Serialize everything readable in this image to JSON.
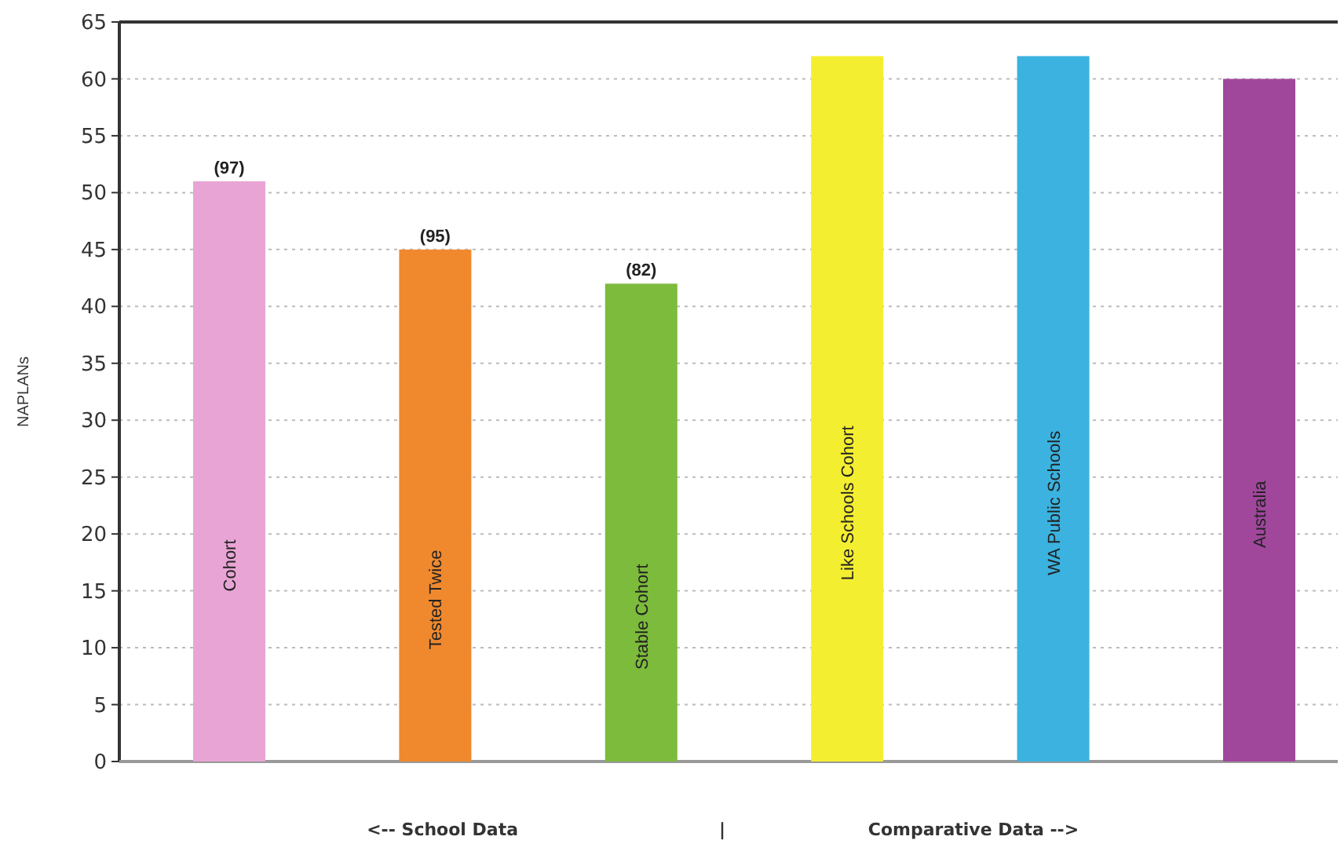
{
  "chart_data": {
    "type": "bar",
    "ylabel": "NAPLANs",
    "categories": [
      "Cohort",
      "Tested Twice",
      "Stable Cohort",
      "Like Schools Cohort",
      "WA Public Schools",
      "Australia"
    ],
    "values": [
      51,
      45,
      42,
      62,
      62,
      60
    ],
    "colors": [
      "#e8a4d4",
      "#f0892e",
      "#7dbb3c",
      "#f4ee30",
      "#3bb2df",
      "#a0479c"
    ],
    "ylim": [
      0,
      65
    ],
    "yticks": [
      0,
      5,
      10,
      15,
      20,
      25,
      30,
      35,
      40,
      45,
      50,
      55,
      60,
      65
    ],
    "grid": "y",
    "annotations": [
      "<-- School Data",
      "|",
      "Comparative Data -->",
      {
        "text": "(97)",
        "x": "Cohort",
        "y": 51
      },
      {
        "text": "(95)",
        "x": "Tested Twice",
        "y": 45
      },
      {
        "text": "(82)",
        "x": "Stable Cohort",
        "y": 42
      }
    ]
  }
}
